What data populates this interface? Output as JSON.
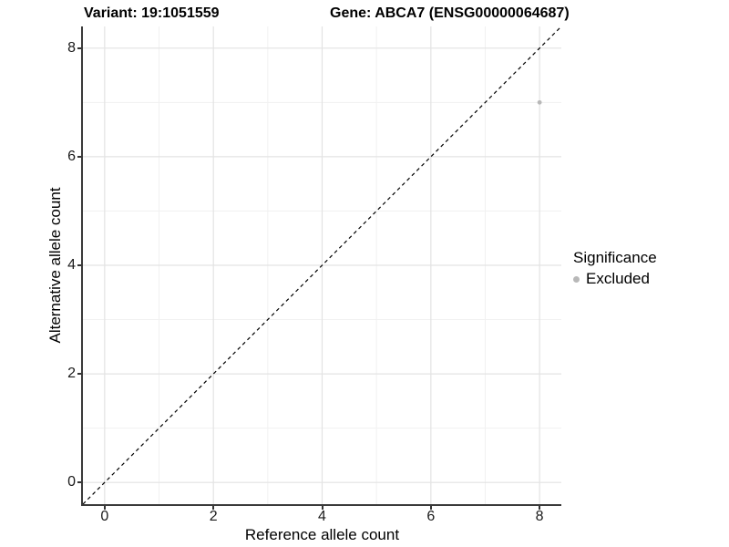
{
  "chart_data": {
    "type": "scatter",
    "title_left": "Variant: 19:1051559",
    "title_right": "Gene: ABCA7 (ENSG00000064687)",
    "xlabel": "Reference allele count",
    "ylabel": "Alternative allele count",
    "xlim": [
      -0.4,
      8.4
    ],
    "ylim": [
      -0.4,
      8.4
    ],
    "x_ticks": [
      0,
      2,
      4,
      6,
      8
    ],
    "y_ticks": [
      0,
      2,
      4,
      6,
      8
    ],
    "x_minor_ticks": [
      1,
      3,
      5,
      7
    ],
    "y_minor_ticks": [
      1,
      3,
      5,
      7
    ],
    "grid": "major+minor",
    "points": [
      {
        "x": 8,
        "y": 7,
        "series": "Excluded"
      }
    ],
    "reference_line": {
      "kind": "identity y=x",
      "style": "dashed",
      "from": [
        -0.4,
        -0.4
      ],
      "to": [
        8.4,
        8.4
      ]
    },
    "legend": {
      "title": "Significance",
      "position": "right",
      "items": [
        {
          "label": "Excluded",
          "color": "#b8b8b8"
        }
      ]
    },
    "style": {
      "point_color": "#b8b8b8",
      "point_radius": 2.4,
      "grid_major_color": "#e3e3e3",
      "grid_minor_color": "#f1f1f1",
      "axis_line_color": "#3a3a3a",
      "reference_line_color": "#000000",
      "background": "#ffffff"
    }
  }
}
